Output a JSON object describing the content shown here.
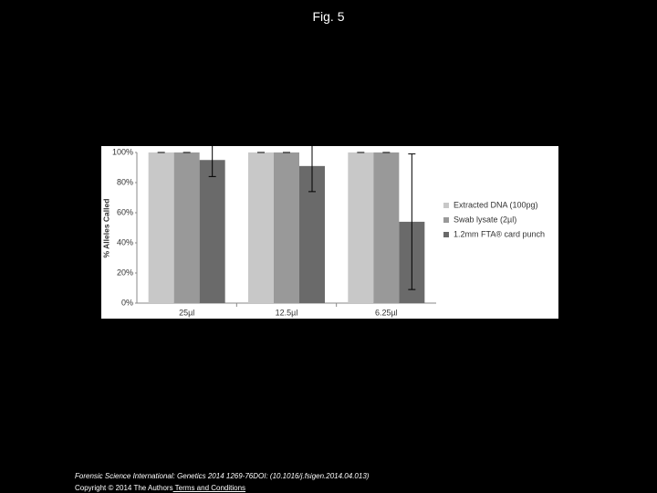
{
  "header": {
    "title": "Fig. 5"
  },
  "chart_data": {
    "type": "bar",
    "y_label": "% Alleles Called",
    "categories": [
      "25µl",
      "12.5µl",
      "6.25µl"
    ],
    "series": [
      {
        "name": "Extracted DNA (100pg)",
        "color": "#c8c8c8",
        "values": [
          100,
          100,
          100
        ],
        "errors": [
          0,
          0,
          0
        ]
      },
      {
        "name": "Swab lysate (2µl)",
        "color": "#999999",
        "values": [
          100,
          100,
          100
        ],
        "errors": [
          0,
          0,
          0
        ]
      },
      {
        "name": "1.2mm FTA® card punch",
        "color": "#6a6a6a",
        "values": [
          95,
          91,
          54
        ],
        "errors": [
          11,
          17,
          45
        ]
      }
    ],
    "ylim": [
      0,
      100
    ],
    "yticks": [
      {
        "value": 0,
        "label": "0%"
      },
      {
        "value": 20,
        "label": "20%"
      },
      {
        "value": 40,
        "label": "40%"
      },
      {
        "value": 60,
        "label": "60%"
      },
      {
        "value": 80,
        "label": "80%"
      },
      {
        "value": 100,
        "label": "100%"
      }
    ],
    "grid": false,
    "legend": "right"
  },
  "footer": {
    "citation": "Forensic Science International: Genetics 2014 1269-76DOI: (10.1016/j.fsigen.2014.04.013)",
    "copyright": "Copyright © 2014 The Authors",
    "link": " Terms and Conditions"
  }
}
